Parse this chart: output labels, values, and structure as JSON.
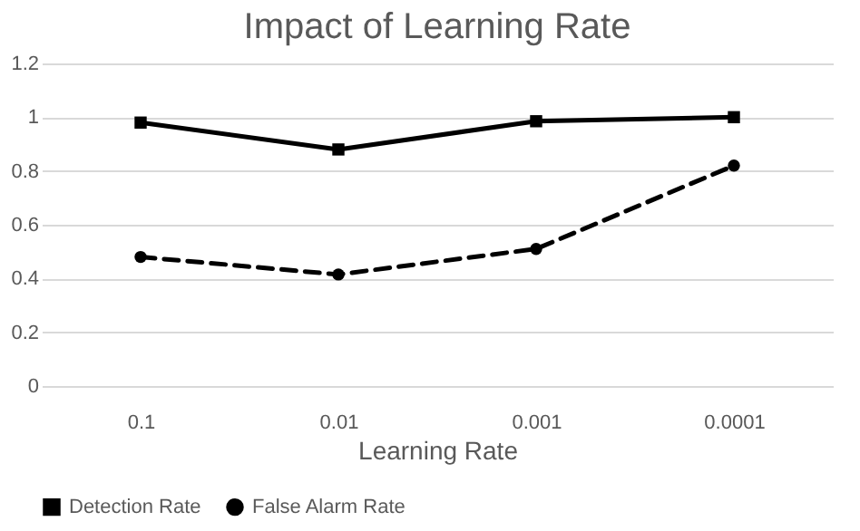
{
  "chart_data": {
    "type": "line",
    "title": "Impact of Learning Rate",
    "xlabel": "Learning Rate",
    "categories": [
      "0.1",
      "0.01",
      "0.001",
      "0.0001"
    ],
    "series": [
      {
        "name": "Detection Rate",
        "color": "#000000",
        "values": [
          0.98,
          0.88,
          0.985,
          1.0
        ],
        "marker": "square",
        "line_style": "solid"
      },
      {
        "name": "False Alarm Rate",
        "color": "#000000",
        "values": [
          0.48,
          0.415,
          0.51,
          0.82
        ],
        "marker": "circle",
        "line_style": "dashed"
      }
    ],
    "ylim": [
      0,
      1.2
    ],
    "yticks": [
      0,
      0.2,
      0.4,
      0.6,
      0.8,
      1,
      1.2
    ],
    "grid": "y",
    "legend": "bottom"
  }
}
